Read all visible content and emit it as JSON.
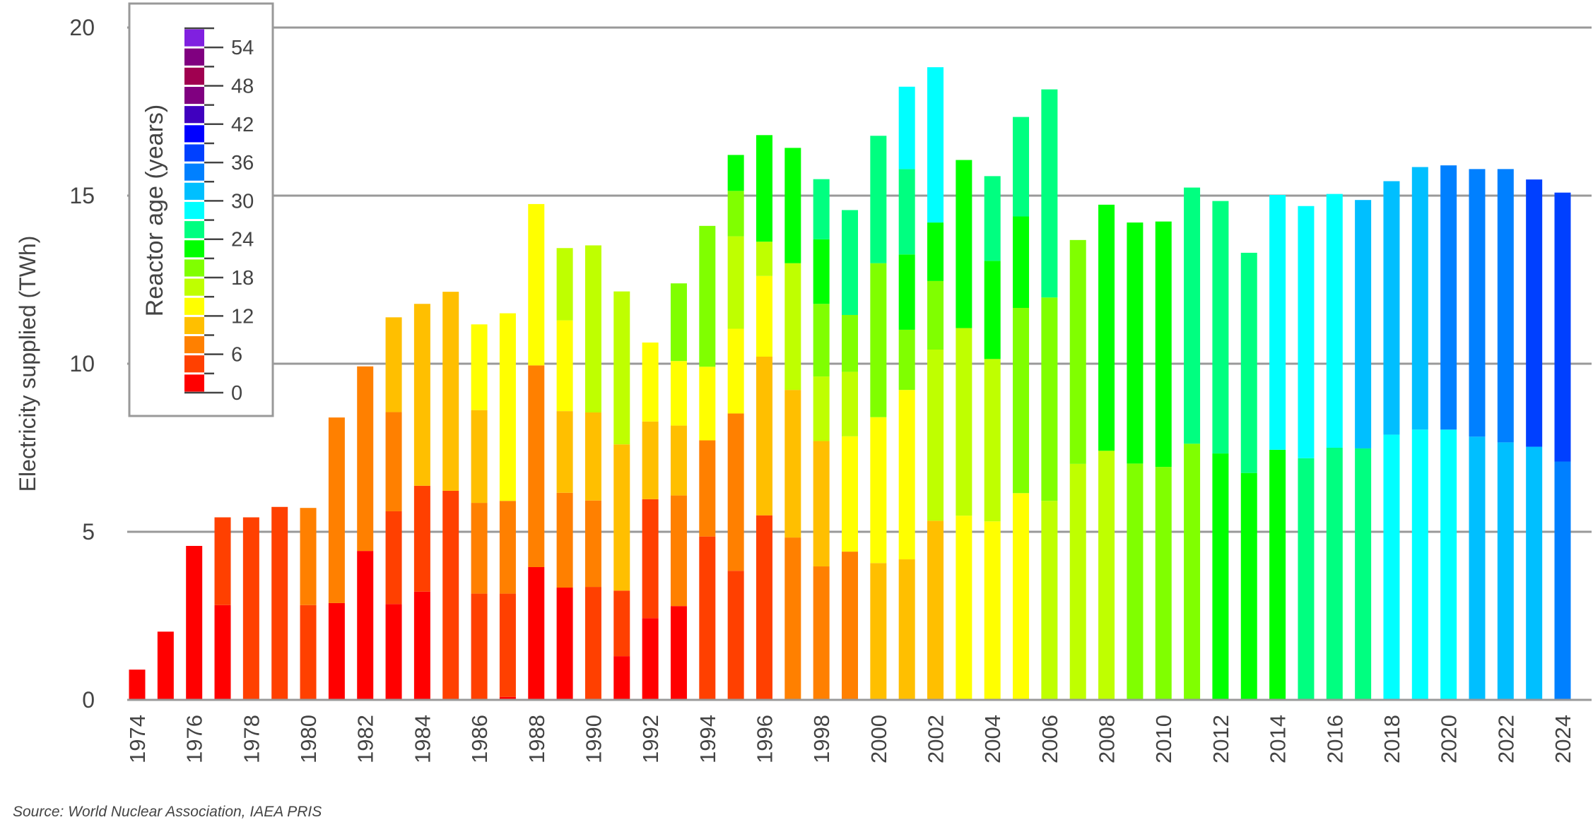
{
  "chart_data": {
    "type": "bar",
    "stacked": true,
    "title": "",
    "xlabel": "",
    "ylabel": "Electricity supplied (TWh)",
    "ylim": [
      0,
      20
    ],
    "yticks": [
      0,
      5,
      10,
      15,
      20
    ],
    "grid": true,
    "legend": {
      "title": "Reactor age (years)",
      "placement": "top-left",
      "tick_labels": [
        "0",
        "6",
        "12",
        "18",
        "24",
        "30",
        "36",
        "42",
        "48",
        "54"
      ],
      "bins": [
        {
          "age": "0-3",
          "color": "#ff0000"
        },
        {
          "age": "3-6",
          "color": "#ff4000"
        },
        {
          "age": "6-9",
          "color": "#ff8000"
        },
        {
          "age": "9-12",
          "color": "#ffbf00"
        },
        {
          "age": "12-15",
          "color": "#ffff00"
        },
        {
          "age": "15-18",
          "color": "#bfff00"
        },
        {
          "age": "18-21",
          "color": "#80ff00"
        },
        {
          "age": "21-24",
          "color": "#00ff00"
        },
        {
          "age": "24-27",
          "color": "#00ff80"
        },
        {
          "age": "27-30",
          "color": "#00ffff"
        },
        {
          "age": "30-33",
          "color": "#00bfff"
        },
        {
          "age": "33-36",
          "color": "#0080ff"
        },
        {
          "age": "36-39",
          "color": "#0040ff"
        },
        {
          "age": "39-42",
          "color": "#0000ff"
        },
        {
          "age": "42-45",
          "color": "#4000bf"
        },
        {
          "age": "45-48",
          "color": "#800080"
        },
        {
          "age": "48-51",
          "color": "#a00050"
        },
        {
          "age": "51-54",
          "color": "#800080"
        },
        {
          "age": "54-57",
          "color": "#8020e0"
        }
      ]
    },
    "x_tick_labels": [
      "1974",
      "1976",
      "1978",
      "1980",
      "1982",
      "1984",
      "1986",
      "1988",
      "1990",
      "1992",
      "1994",
      "1996",
      "1998",
      "2000",
      "2002",
      "2004",
      "2006",
      "2008",
      "2010",
      "2012",
      "2014",
      "2016",
      "2018",
      "2020",
      "2022",
      "2024"
    ],
    "bars": [
      {
        "year": 1974,
        "segments": [
          [
            0,
            0.9
          ]
        ]
      },
      {
        "year": 1975,
        "segments": [
          [
            0,
            2.03
          ]
        ]
      },
      {
        "year": 1976,
        "segments": [
          [
            0,
            4.58
          ]
        ]
      },
      {
        "year": 1977,
        "segments": [
          [
            0,
            2.82
          ],
          [
            1,
            2.61
          ]
        ]
      },
      {
        "year": 1978,
        "segments": [
          [
            1,
            5.43
          ]
        ]
      },
      {
        "year": 1979,
        "segments": [
          [
            1,
            5.74
          ]
        ]
      },
      {
        "year": 1980,
        "segments": [
          [
            1,
            2.82
          ],
          [
            2,
            2.89
          ]
        ]
      },
      {
        "year": 1981,
        "segments": [
          [
            0,
            2.88
          ],
          [
            2,
            5.52
          ]
        ]
      },
      {
        "year": 1982,
        "segments": [
          [
            0,
            4.43
          ],
          [
            2,
            5.49
          ]
        ]
      },
      {
        "year": 1983,
        "segments": [
          [
            0,
            2.85
          ],
          [
            1,
            2.76
          ],
          [
            2,
            2.95
          ],
          [
            3,
            2.82
          ]
        ]
      },
      {
        "year": 1984,
        "segments": [
          [
            0,
            3.22
          ],
          [
            1,
            3.15
          ],
          [
            3,
            5.41
          ]
        ]
      },
      {
        "year": 1985,
        "segments": [
          [
            1,
            6.22
          ],
          [
            3,
            5.92
          ]
        ]
      },
      {
        "year": 1986,
        "segments": [
          [
            1,
            3.16
          ],
          [
            2,
            2.7
          ],
          [
            3,
            2.76
          ],
          [
            4,
            2.55
          ]
        ]
      },
      {
        "year": 1987,
        "segments": [
          [
            0,
            0.09
          ],
          [
            1,
            3.07
          ],
          [
            2,
            2.76
          ],
          [
            4,
            5.58
          ]
        ]
      },
      {
        "year": 1988,
        "segments": [
          [
            0,
            3.95
          ],
          [
            2,
            6.0
          ],
          [
            4,
            4.8
          ]
        ]
      },
      {
        "year": 1989,
        "segments": [
          [
            0,
            3.34
          ],
          [
            2,
            2.82
          ],
          [
            3,
            2.43
          ],
          [
            4,
            2.7
          ],
          [
            5,
            2.15
          ]
        ]
      },
      {
        "year": 1990,
        "segments": [
          [
            1,
            3.36
          ],
          [
            2,
            2.57
          ],
          [
            3,
            2.62
          ],
          [
            5,
            4.97
          ]
        ]
      },
      {
        "year": 1991,
        "segments": [
          [
            0,
            1.3
          ],
          [
            1,
            1.95
          ],
          [
            3,
            4.35
          ],
          [
            5,
            4.55
          ]
        ]
      },
      {
        "year": 1992,
        "segments": [
          [
            0,
            2.43
          ],
          [
            1,
            3.54
          ],
          [
            3,
            2.31
          ],
          [
            4,
            2.35
          ]
        ]
      },
      {
        "year": 1993,
        "segments": [
          [
            0,
            2.79
          ],
          [
            2,
            3.29
          ],
          [
            3,
            2.08
          ],
          [
            4,
            1.92
          ],
          [
            6,
            2.31
          ]
        ]
      },
      {
        "year": 1994,
        "segments": [
          [
            1,
            4.86
          ],
          [
            2,
            2.86
          ],
          [
            4,
            2.19
          ],
          [
            6,
            4.19
          ]
        ]
      },
      {
        "year": 1995,
        "segments": [
          [
            1,
            3.84
          ],
          [
            2,
            4.68
          ],
          [
            4,
            2.52
          ],
          [
            5,
            2.75
          ],
          [
            6,
            1.35
          ],
          [
            7,
            1.07
          ]
        ]
      },
      {
        "year": 1996,
        "segments": [
          [
            1,
            5.49
          ],
          [
            3,
            4.72
          ],
          [
            4,
            2.4
          ],
          [
            5,
            1.02
          ],
          [
            7,
            3.17
          ]
        ]
      },
      {
        "year": 1997,
        "segments": [
          [
            2,
            4.83
          ],
          [
            3,
            4.39
          ],
          [
            5,
            3.77
          ],
          [
            7,
            3.43
          ]
        ]
      },
      {
        "year": 1998,
        "segments": [
          [
            2,
            3.97
          ],
          [
            3,
            3.73
          ],
          [
            5,
            1.92
          ],
          [
            6,
            2.16
          ],
          [
            7,
            1.92
          ],
          [
            8,
            1.79
          ]
        ]
      },
      {
        "year": 1999,
        "segments": [
          [
            2,
            4.41
          ],
          [
            4,
            3.43
          ],
          [
            5,
            1.92
          ],
          [
            6,
            1.69
          ],
          [
            8,
            3.12
          ]
        ]
      },
      {
        "year": 2000,
        "segments": [
          [
            3,
            4.07
          ],
          [
            4,
            4.34
          ],
          [
            6,
            4.58
          ],
          [
            8,
            3.79
          ]
        ]
      },
      {
        "year": 2001,
        "segments": [
          [
            3,
            4.18
          ],
          [
            4,
            5.04
          ],
          [
            6,
            1.79
          ],
          [
            7,
            2.24
          ],
          [
            8,
            2.54
          ],
          [
            9,
            2.45
          ]
        ]
      },
      {
        "year": 2002,
        "segments": [
          [
            3,
            5.33
          ],
          [
            5,
            5.09
          ],
          [
            6,
            2.04
          ],
          [
            7,
            1.74
          ],
          [
            9,
            4.62
          ]
        ]
      },
      {
        "year": 2003,
        "segments": [
          [
            4,
            5.48
          ],
          [
            5,
            5.58
          ],
          [
            7,
            5.0
          ]
        ]
      },
      {
        "year": 2004,
        "segments": [
          [
            4,
            5.31
          ],
          [
            5,
            4.83
          ],
          [
            7,
            2.92
          ],
          [
            8,
            2.52
          ]
        ]
      },
      {
        "year": 2005,
        "segments": [
          [
            4,
            6.15
          ],
          [
            6,
            5.51
          ],
          [
            7,
            2.72
          ],
          [
            8,
            2.96
          ]
        ]
      },
      {
        "year": 2006,
        "segments": [
          [
            5,
            5.92
          ],
          [
            6,
            6.05
          ],
          [
            8,
            6.19
          ]
        ]
      },
      {
        "year": 2007,
        "segments": [
          [
            5,
            7.02
          ],
          [
            6,
            6.66
          ]
        ]
      },
      {
        "year": 2008,
        "segments": [
          [
            5,
            7.41
          ],
          [
            7,
            7.32
          ]
        ]
      },
      {
        "year": 2009,
        "segments": [
          [
            6,
            7.03
          ],
          [
            7,
            7.17
          ]
        ]
      },
      {
        "year": 2010,
        "segments": [
          [
            6,
            6.93
          ],
          [
            7,
            7.3
          ]
        ]
      },
      {
        "year": 2011,
        "segments": [
          [
            6,
            7.62
          ],
          [
            8,
            7.62
          ]
        ]
      },
      {
        "year": 2012,
        "segments": [
          [
            7,
            7.33
          ],
          [
            8,
            7.51
          ]
        ]
      },
      {
        "year": 2013,
        "segments": [
          [
            7,
            6.75
          ],
          [
            8,
            6.55
          ]
        ]
      },
      {
        "year": 2014,
        "segments": [
          [
            7,
            7.44
          ],
          [
            9,
            7.58
          ]
        ]
      },
      {
        "year": 2015,
        "segments": [
          [
            8,
            7.19
          ],
          [
            9,
            7.5
          ]
        ]
      },
      {
        "year": 2016,
        "segments": [
          [
            8,
            7.5
          ],
          [
            9,
            7.55
          ]
        ]
      },
      {
        "year": 2017,
        "segments": [
          [
            8,
            7.48
          ],
          [
            10,
            7.39
          ]
        ]
      },
      {
        "year": 2018,
        "segments": [
          [
            9,
            7.89
          ],
          [
            10,
            7.54
          ]
        ]
      },
      {
        "year": 2019,
        "segments": [
          [
            9,
            8.04
          ],
          [
            10,
            7.81
          ]
        ]
      },
      {
        "year": 2020,
        "segments": [
          [
            9,
            8.04
          ],
          [
            11,
            7.86
          ]
        ]
      },
      {
        "year": 2021,
        "segments": [
          [
            10,
            7.83
          ],
          [
            11,
            7.96
          ]
        ]
      },
      {
        "year": 2022,
        "segments": [
          [
            10,
            7.66
          ],
          [
            11,
            8.13
          ]
        ]
      },
      {
        "year": 2023,
        "segments": [
          [
            10,
            7.53
          ],
          [
            12,
            7.95
          ]
        ]
      },
      {
        "year": 2024,
        "segments": [
          [
            11,
            7.09
          ],
          [
            12,
            8.0
          ]
        ]
      }
    ]
  },
  "source": "Source: World Nuclear Association, IAEA PRIS"
}
